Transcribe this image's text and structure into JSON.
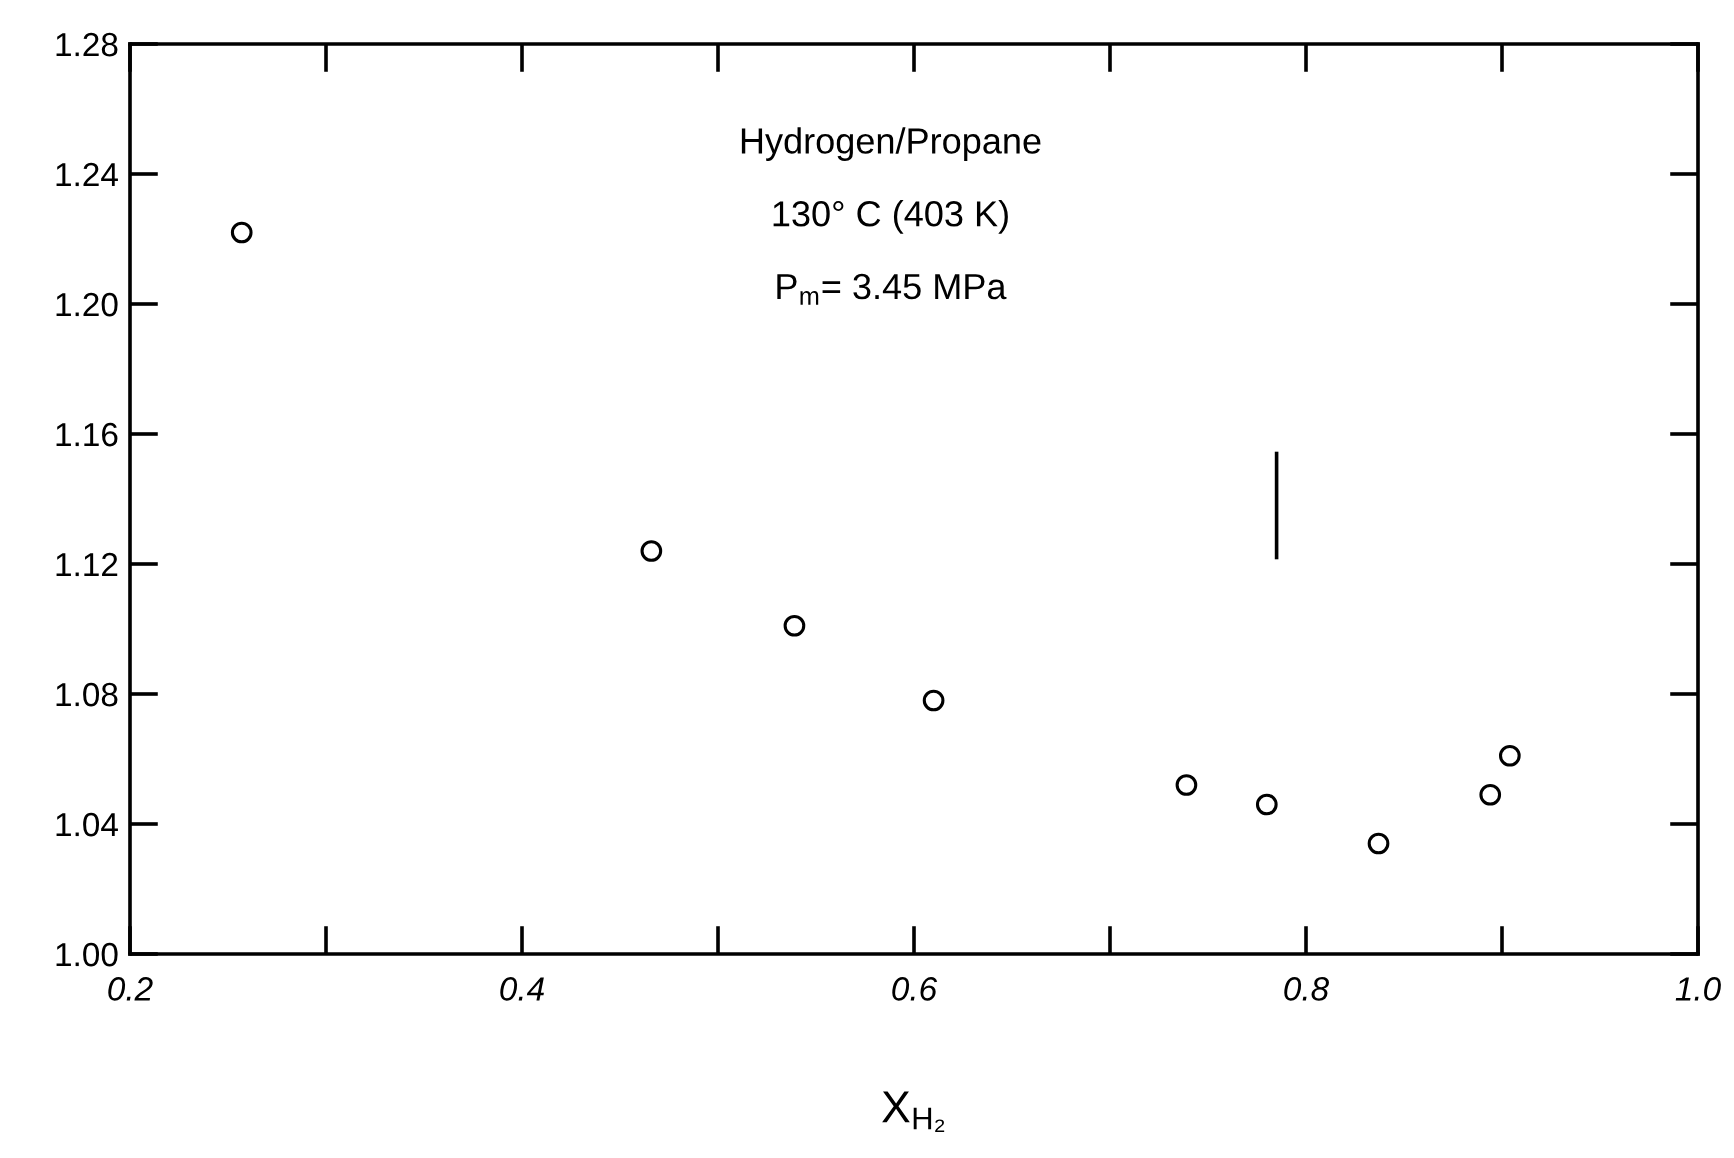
{
  "chart_data": {
    "type": "scatter",
    "xlabel": "X$_{H₂}$",
    "annotations": [
      "Hydrogen/Propane",
      "130° C (403 K)",
      "P$_{m}$= 3.45 MPa"
    ],
    "series": [
      {
        "color": "#000000",
        "x": [
          0.257,
          0.466,
          0.539,
          0.61,
          0.739,
          0.78,
          0.837,
          0.894,
          0.904
        ],
        "values": [
          1.222,
          1.124,
          1.101,
          1.078,
          1.052,
          1.046,
          1.034,
          1.049,
          1.061
        ]
      },
      {
        "type": "line",
        "color": "#000000",
        "marker": "none",
        "x": [
          0.785,
          0.785
        ],
        "values": [
          1.122,
          1.154
        ]
      }
    ],
    "marker": "circle",
    "xlim": [
      0.2,
      1.0
    ],
    "ylim": [
      1.0,
      1.28
    ],
    "xticks": [
      {
        "value": 0.2,
        "label": "0.2"
      },
      {
        "value": 0.3,
        "label": null
      },
      {
        "value": 0.4,
        "label": "0.4"
      },
      {
        "value": 0.5,
        "label": null
      },
      {
        "value": 0.6,
        "label": "0.6"
      },
      {
        "value": 0.7,
        "label": null
      },
      {
        "value": 0.8,
        "label": "0.8"
      },
      {
        "value": 0.9,
        "label": null
      },
      {
        "value": 1.0,
        "label": "1.0"
      }
    ],
    "yticks": [
      {
        "value": 1.0,
        "label": "1.00"
      },
      {
        "value": 1.04,
        "label": "1.04"
      },
      {
        "value": 1.08,
        "label": "1.08"
      },
      {
        "value": 1.12,
        "label": "1.12"
      },
      {
        "value": 1.16,
        "label": "1.16"
      },
      {
        "value": 1.2,
        "label": "1.20"
      },
      {
        "value": 1.24,
        "label": "1.24"
      },
      {
        "value": 1.28,
        "label": "1.28"
      }
    ],
    "grid": false,
    "legend": false
  }
}
